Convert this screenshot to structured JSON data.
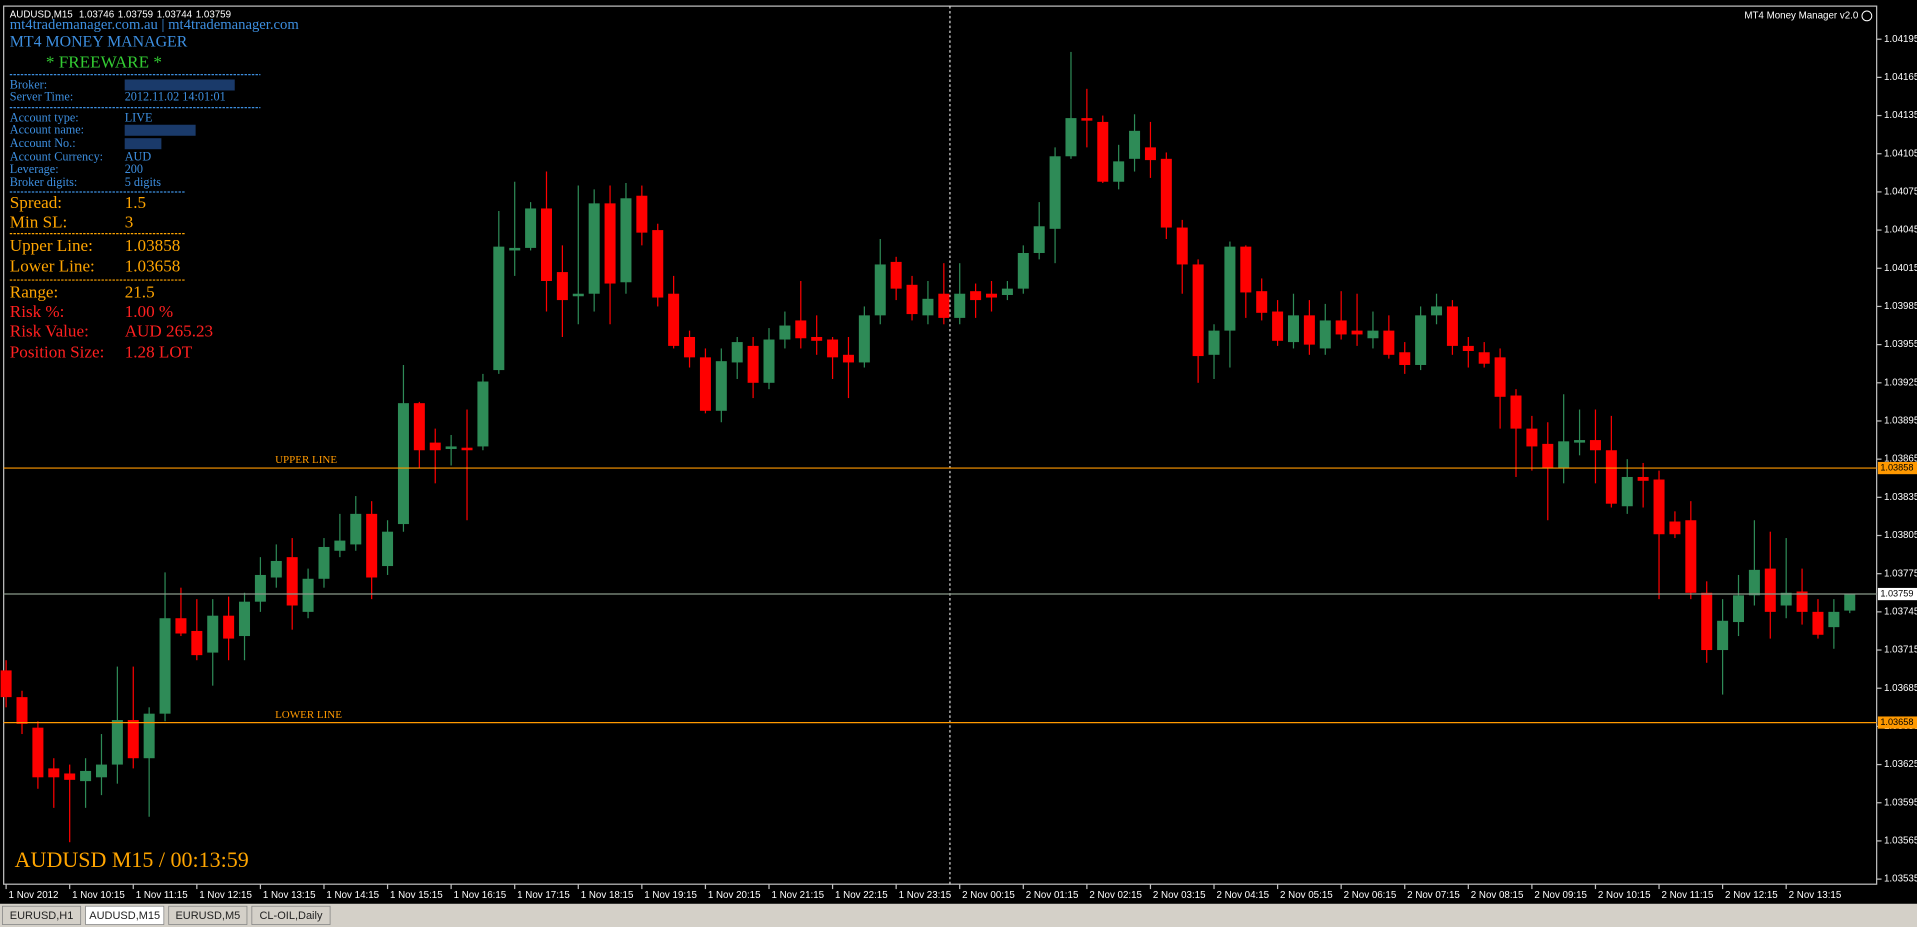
{
  "header": {
    "symbol": "AUDUSD,M15",
    "site": "mt4trademanager.com.au | mt4trademanager.com",
    "title": "MT4 MONEY MANAGER",
    "tag": "* FREEWARE *",
    "indicator": "MT4 Money Manager v2.0",
    "countdown": "AUDUSD M15 / 00:13:59"
  },
  "panel": {
    "info": [
      {
        "label": "Broker:"
      },
      {
        "label": "Server Time:",
        "value": "2012.11.02 14:01:01"
      },
      {
        "label": "Account type:",
        "value": "LIVE"
      },
      {
        "label": "Account name:"
      },
      {
        "label": "Account No.:"
      },
      {
        "label": "Account Currency:",
        "value": "AUD"
      },
      {
        "label": "Leverage:",
        "value": "200"
      },
      {
        "label": "Broker digits:",
        "value": "5 digits"
      }
    ],
    "spread": {
      "label": "Spread:",
      "value": "1.5"
    },
    "min_sl": {
      "label": "Min SL:",
      "value": "3"
    },
    "upper": {
      "label": "Upper Line:"
    },
    "lower": {
      "label": "Lower Line:"
    },
    "range": {
      "label": "Range:",
      "value": "21.5"
    },
    "risk_pct": {
      "label": "Risk %:",
      "value": "1.00 %"
    },
    "risk_value": {
      "label": "Risk Value:",
      "value": "AUD 265.23"
    },
    "position": {
      "label": "Position Size:",
      "value": "1.28 LOT"
    }
  },
  "tabs": [
    "EURUSD,H1",
    "AUDUSD,M15",
    "EURUSD,M5",
    "CL-OIL,Daily"
  ],
  "chart_data": {
    "type": "candlestick",
    "up_color": "#2e8b57",
    "down_color": "#ff0000",
    "ylim": [
      1.03531,
      1.04221
    ],
    "yticks": [
      1.04195,
      1.04165,
      1.04135,
      1.04105,
      1.04075,
      1.04045,
      1.04015,
      1.03985,
      1.03955,
      1.03925,
      1.03895,
      1.03865,
      1.03835,
      1.03805,
      1.03775,
      1.03745,
      1.03715,
      1.03685,
      1.03655,
      1.03625,
      1.03595,
      1.03565,
      1.03535
    ],
    "levels": [
      {
        "name": "UPPER LINE",
        "value": 1.03858,
        "color": "#ff9900"
      },
      {
        "name": "LOWER LINE",
        "value": 1.03658,
        "color": "#ff9900"
      },
      {
        "value": 1.03759,
        "color": "#8a9a8a"
      }
    ],
    "categories": [
      "1 Nov 2012",
      null,
      null,
      null,
      "1 Nov 10:15",
      null,
      null,
      null,
      "1 Nov 11:15",
      null,
      null,
      null,
      "1 Nov 12:15",
      null,
      null,
      null,
      "1 Nov 13:15",
      null,
      null,
      null,
      "1 Nov 14:15",
      null,
      null,
      null,
      "1 Nov 15:15",
      null,
      null,
      null,
      "1 Nov 16:15",
      null,
      null,
      null,
      "1 Nov 17:15",
      null,
      null,
      null,
      "1 Nov 18:15",
      null,
      null,
      null,
      "1 Nov 19:15",
      null,
      null,
      null,
      "1 Nov 20:15",
      null,
      null,
      null,
      "1 Nov 21:15",
      null,
      null,
      null,
      "1 Nov 22:15",
      null,
      null,
      null,
      "1 Nov 23:15",
      null,
      null,
      null,
      "2 Nov 00:15",
      null,
      null,
      null,
      "2 Nov 01:15",
      null,
      null,
      null,
      "2 Nov 02:15",
      null,
      null,
      null,
      "2 Nov 03:15",
      null,
      null,
      null,
      "2 Nov 04:15",
      null,
      null,
      null,
      "2 Nov 05:15",
      null,
      null,
      null,
      "2 Nov 06:15",
      null,
      null,
      null,
      "2 Nov 07:15",
      null,
      null,
      null,
      "2 Nov 08:15",
      null,
      null,
      null,
      "2 Nov 09:15",
      null,
      null,
      null,
      "2 Nov 10:15",
      null,
      null,
      null,
      "2 Nov 11:15",
      null,
      null,
      null,
      "2 Nov 12:15",
      null,
      null,
      null,
      "2 Nov 13:15",
      null,
      null,
      null,
      null
    ],
    "open": [
      1.03699,
      1.03678,
      1.03654,
      1.03622,
      1.03618,
      1.03612,
      1.03615,
      1.03625,
      1.0366,
      1.0363,
      1.03665,
      1.0374,
      1.0373,
      1.03713,
      1.03742,
      1.03726,
      1.03753,
      1.03772,
      1.03788,
      1.03745,
      1.03771,
      1.03793,
      1.03798,
      1.03822,
      1.03781,
      1.03814,
      1.03909,
      1.03878,
      1.03873,
      1.03874,
      1.03875,
      1.03935,
      1.04029,
      1.04031,
      1.04062,
      1.04012,
      1.03993,
      1.03995,
      1.04066,
      1.04004,
      1.04072,
      1.04045,
      1.03995,
      1.03961,
      1.03945,
      1.03903,
      1.03941,
      1.03954,
      1.03925,
      1.03959,
      1.03974,
      1.03961,
      1.03959,
      1.03947,
      1.03941,
      1.03978,
      1.0402,
      1.04002,
      1.03978,
      1.03995,
      1.03976,
      1.03997,
      1.03995,
      1.03994,
      1.03999,
      1.04027,
      1.04046,
      1.04103,
      1.04133,
      1.0413,
      1.04083,
      1.04101,
      1.0411,
      1.04101,
      1.04047,
      1.04018,
      1.03947,
      1.03966,
      1.04032,
      1.03997,
      1.03981,
      1.03957,
      1.03978,
      1.03952,
      1.03974,
      1.03966,
      1.0396,
      1.03966,
      1.03949,
      1.03939,
      1.03978,
      1.03985,
      1.03954,
      1.03949,
      1.03945,
      1.03915,
      1.03889,
      1.03877,
      1.03858,
      1.03878,
      1.0388,
      1.03872,
      1.03828,
      1.03851,
      1.03849,
      1.03816,
      1.03817,
      1.0376,
      1.03715,
      1.03737,
      1.03758,
      1.03779,
      1.0375,
      1.03761,
      1.03745,
      1.03733,
      1.03746
    ],
    "high": [
      1.03707,
      1.03683,
      1.03659,
      1.0363,
      1.03625,
      1.0363,
      1.03649,
      1.03702,
      1.03702,
      1.0367,
      1.03776,
      1.03764,
      1.03755,
      1.03755,
      1.03757,
      1.0376,
      1.03788,
      1.03798,
      1.03803,
      1.03779,
      1.03803,
      1.03822,
      1.03836,
      1.03832,
      1.03817,
      1.03939,
      1.0391,
      1.03889,
      1.03884,
      1.03904,
      1.03932,
      1.0406,
      1.04083,
      1.04067,
      1.04091,
      1.04033,
      1.0408,
      1.04077,
      1.0408,
      1.04082,
      1.0408,
      1.0405,
      1.04009,
      1.03966,
      1.03952,
      1.03952,
      1.03961,
      1.03961,
      1.03968,
      1.03981,
      1.04005,
      1.03978,
      1.03961,
      1.03961,
      1.03985,
      1.04038,
      1.04024,
      1.04009,
      1.04005,
      1.04019,
      1.04019,
      1.04003,
      1.04005,
      1.04005,
      1.04033,
      1.04067,
      1.0411,
      1.04185,
      1.04156,
      1.04135,
      1.04112,
      1.04136,
      1.0413,
      1.04106,
      1.04053,
      1.04022,
      1.03971,
      1.04036,
      1.04033,
      1.04007,
      1.0399,
      1.03995,
      1.0399,
      1.03987,
      1.03997,
      1.03995,
      1.03981,
      1.03978,
      1.03957,
      1.03985,
      1.03995,
      1.0399,
      1.03961,
      1.03957,
      1.03952,
      1.0392,
      1.03899,
      1.03894,
      1.03916,
      1.03904,
      1.03904,
      1.03899,
      1.03865,
      1.03862,
      1.03856,
      1.03824,
      1.03832,
      1.03769,
      1.03755,
      1.03774,
      1.03817,
      1.03808,
      1.03803,
      1.03779,
      1.03755,
      1.03755,
      1.03759
    ],
    "low": [
      1.0367,
      1.03649,
      1.03606,
      1.03591,
      1.03564,
      1.03591,
      1.03601,
      1.0361,
      1.03622,
      1.03584,
      1.03659,
      1.03726,
      1.03707,
      1.03687,
      1.03707,
      1.03707,
      1.03745,
      1.03764,
      1.03731,
      1.0374,
      1.03764,
      1.03788,
      1.03793,
      1.03755,
      1.03774,
      1.03808,
      1.03858,
      1.03846,
      1.0386,
      1.03817,
      1.03872,
      1.03932,
      1.04009,
      1.04029,
      1.03981,
      1.03961,
      1.03971,
      1.03981,
      1.03971,
      1.03995,
      1.04033,
      1.03985,
      1.03952,
      1.03937,
      1.03901,
      1.03894,
      1.03928,
      1.03913,
      1.0392,
      1.03952,
      1.03952,
      1.03947,
      1.03928,
      1.03913,
      1.03937,
      1.03971,
      1.0399,
      1.03974,
      1.03971,
      1.03971,
      1.03971,
      1.03976,
      1.03981,
      1.0399,
      1.03995,
      1.04022,
      1.04019,
      1.04101,
      1.0411,
      1.04082,
      1.04077,
      1.04091,
      1.04086,
      1.04038,
      1.03995,
      1.03925,
      1.03928,
      1.03937,
      1.03976,
      1.03974,
      1.03954,
      1.03952,
      1.03947,
      1.03947,
      1.03959,
      1.03954,
      1.03952,
      1.03944,
      1.03932,
      1.03935,
      1.03971,
      1.03947,
      1.03937,
      1.03937,
      1.03889,
      1.03851,
      1.03856,
      1.03817,
      1.03846,
      1.03868,
      1.03846,
      1.03827,
      1.03822,
      1.03827,
      1.03755,
      1.03803,
      1.03755,
      1.03705,
      1.0368,
      1.03726,
      1.0375,
      1.03724,
      1.0374,
      1.03735,
      1.03724,
      1.03716,
      1.03744
    ],
    "close": [
      1.03678,
      1.03657,
      1.03615,
      1.03615,
      1.03613,
      1.0362,
      1.03625,
      1.0366,
      1.0363,
      1.03665,
      1.0374,
      1.03728,
      1.03711,
      1.03742,
      1.03724,
      1.03753,
      1.03774,
      1.03785,
      1.0375,
      1.03771,
      1.03796,
      1.03801,
      1.03822,
      1.03772,
      1.03808,
      1.03909,
      1.03872,
      1.03872,
      1.03875,
      1.03872,
      1.03926,
      1.04032,
      1.04031,
      1.04062,
      1.04005,
      1.0399,
      1.03995,
      1.04066,
      1.04003,
      1.0407,
      1.04043,
      1.03992,
      1.03954,
      1.03945,
      1.03903,
      1.03942,
      1.03957,
      1.03925,
      1.03959,
      1.0397,
      1.0396,
      1.03958,
      1.03945,
      1.03941,
      1.03978,
      1.04018,
      1.03999,
      1.03979,
      1.03991,
      1.03976,
      1.03995,
      1.0399,
      1.03992,
      1.03999,
      1.04027,
      1.04048,
      1.04103,
      1.04133,
      1.04131,
      1.04083,
      1.04099,
      1.04123,
      1.041,
      1.04047,
      1.04018,
      1.03946,
      1.03966,
      1.04032,
      1.03996,
      1.0398,
      1.03958,
      1.03978,
      1.03955,
      1.03974,
      1.03963,
      1.03963,
      1.03966,
      1.03947,
      1.03939,
      1.03978,
      1.03985,
      1.03954,
      1.0395,
      1.0394,
      1.03914,
      1.03889,
      1.03875,
      1.03858,
      1.03879,
      1.0388,
      1.03872,
      1.0383,
      1.03851,
      1.03848,
      1.03806,
      1.03806,
      1.0376,
      1.03715,
      1.03738,
      1.03758,
      1.03778,
      1.03745,
      1.0376,
      1.03745,
      1.03727,
      1.03745,
      1.03759
    ]
  }
}
